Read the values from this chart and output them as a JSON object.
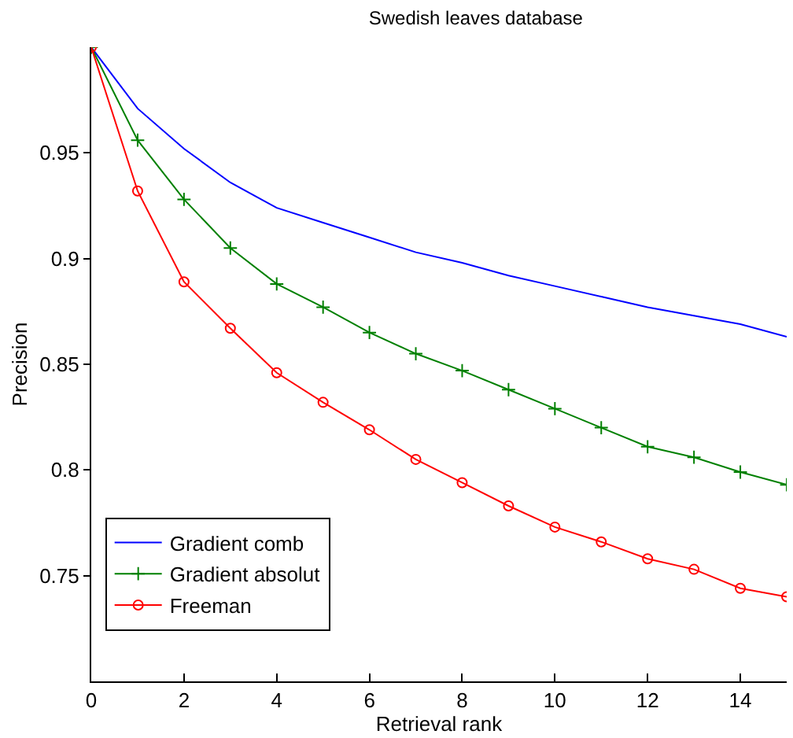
{
  "chart_data": {
    "type": "line",
    "title": "Swedish leaves database",
    "xlabel": "Retrieval rank",
    "ylabel": "Precision",
    "x": [
      0,
      1,
      2,
      3,
      4,
      5,
      6,
      7,
      8,
      9,
      10,
      11,
      12,
      13,
      14,
      15
    ],
    "series": [
      {
        "name": "Gradient comb",
        "color": "#0000ff",
        "marker": "none",
        "values": [
          1.0,
          0.971,
          0.952,
          0.936,
          0.924,
          0.917,
          0.91,
          0.903,
          0.898,
          0.892,
          0.887,
          0.882,
          0.877,
          0.873,
          0.869,
          0.863
        ]
      },
      {
        "name": "Gradient absolut",
        "color": "#008000",
        "marker": "cross",
        "values": [
          1.0,
          0.956,
          0.928,
          0.905,
          0.888,
          0.877,
          0.865,
          0.855,
          0.847,
          0.838,
          0.829,
          0.82,
          0.811,
          0.806,
          0.799,
          0.793
        ]
      },
      {
        "name": "Freeman",
        "color": "#ff0000",
        "marker": "circle",
        "values": [
          1.0,
          0.932,
          0.889,
          0.867,
          0.846,
          0.832,
          0.819,
          0.805,
          0.794,
          0.783,
          0.773,
          0.766,
          0.758,
          0.753,
          0.744,
          0.74
        ]
      }
    ],
    "xlim": [
      0,
      15
    ],
    "ylim": [
      0.7,
      1.0
    ],
    "xticks": [
      0,
      2,
      4,
      6,
      8,
      10,
      12,
      14
    ],
    "yticks": [
      0.75,
      0.8,
      0.85,
      0.9,
      0.95
    ],
    "legend": "bottom left",
    "line_style": "solid"
  }
}
